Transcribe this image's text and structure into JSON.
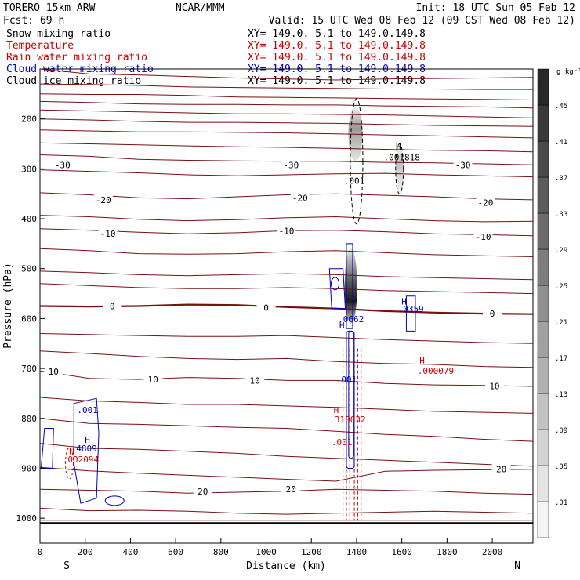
{
  "header": {
    "model": "TORERO  15km ARW",
    "org": "NCAR/MMM",
    "init": "Init: 18 UTC Sun 05 Feb 12",
    "fcst": "Fcst:    69 h",
    "valid": "Valid: 15 UTC Wed 08 Feb 12 (09 CST Wed 08 Feb 12)"
  },
  "fields": [
    {
      "label": "Snow mixing ratio",
      "color": "#000000",
      "xy": "XY= 149.0.  5.1 to 149.0.149.8"
    },
    {
      "label": "Temperature",
      "color": "#cc0000",
      "xy": "XY= 149.0.  5.1 to 149.0.149.8"
    },
    {
      "label": "Rain water mixing ratio",
      "color": "#cc0000",
      "xy": "XY= 149.0.  5.1 to 149.0.149.8"
    },
    {
      "label": "Cloud water mixing ratio",
      "color": "#0000bb",
      "xy": "XY= 149.0.  5.1 to 149.0.149.8"
    },
    {
      "label": "Cloud ice mixing ratio",
      "color": "#000000",
      "xy": "XY= 149.0.  5.1 to 149.0.149.8"
    }
  ],
  "chart_data": {
    "type": "contour-cross-section",
    "xlabel": "Distance (km)",
    "ylabel": "Pressure (hPa)",
    "xlim": [
      0,
      2180
    ],
    "ylim": [
      1050,
      100
    ],
    "x_ticks": [
      0,
      200,
      400,
      600,
      800,
      1000,
      1200,
      1400,
      1600,
      1800,
      2000
    ],
    "y_ticks": [
      200,
      300,
      400,
      500,
      600,
      700,
      800,
      900,
      1000
    ],
    "x_end_labels": {
      "left": "S",
      "right": "N"
    },
    "colorbar": {
      "unit": "g kg⁻¹",
      "levels": [
        ".01",
        ".05",
        ".09",
        ".13",
        ".17",
        ".21",
        ".25",
        ".29",
        ".33",
        ".37",
        ".41",
        ".45"
      ]
    },
    "temperature_labels": [
      {
        "text": "-30",
        "x": 100,
        "p": 292
      },
      {
        "text": "-30",
        "x": 1110,
        "p": 292
      },
      {
        "text": "-30",
        "x": 1870,
        "p": 292
      },
      {
        "text": "-20",
        "x": 280,
        "p": 362
      },
      {
        "text": "-20",
        "x": 1150,
        "p": 358
      },
      {
        "text": "-20",
        "x": 1970,
        "p": 368
      },
      {
        "text": "-10",
        "x": 300,
        "p": 430
      },
      {
        "text": "-10",
        "x": 1090,
        "p": 424
      },
      {
        "text": "-10",
        "x": 1960,
        "p": 436
      },
      {
        "text": "0",
        "x": 320,
        "p": 575
      },
      {
        "text": "0",
        "x": 1000,
        "p": 578
      },
      {
        "text": "0",
        "x": 2000,
        "p": 590
      },
      {
        "text": "10",
        "x": 60,
        "p": 706
      },
      {
        "text": "10",
        "x": 500,
        "p": 722
      },
      {
        "text": "10",
        "x": 950,
        "p": 724
      },
      {
        "text": "10",
        "x": 2010,
        "p": 735
      },
      {
        "text": "20",
        "x": 720,
        "p": 946
      },
      {
        "text": "20",
        "x": 1110,
        "p": 942
      },
      {
        "text": "20",
        "x": 2040,
        "p": 902
      }
    ],
    "extrema_labels": [
      {
        "text": "H",
        "color": "#000000",
        "x": 1585,
        "p": 262
      },
      {
        "text": ".001818",
        "color": "#000000",
        "x": 1600,
        "p": 283
      },
      {
        "text": ".001",
        "color": "#000000",
        "x": 1390,
        "p": 330
      },
      {
        "text": "H",
        "color": "#0000bb",
        "x": 1335,
        "p": 620
      },
      {
        "text": ".0662",
        "color": "#0000bb",
        "x": 1375,
        "p": 607
      },
      {
        "text": "H",
        "color": "#0000bb",
        "x": 1610,
        "p": 572
      },
      {
        "text": ".0359",
        "color": "#0000bb",
        "x": 1640,
        "p": 587
      },
      {
        "text": "H",
        "color": "#cc0000",
        "x": 1690,
        "p": 690
      },
      {
        "text": ".000079",
        "color": "#cc0000",
        "x": 1750,
        "p": 711
      },
      {
        "text": ".001",
        "color": "#0000bb",
        "x": 1355,
        "p": 728
      },
      {
        "text": "H",
        "color": "#cc0000",
        "x": 1310,
        "p": 789
      },
      {
        "text": ".310032",
        "color": "#cc0000",
        "x": 1360,
        "p": 808
      },
      {
        "text": ".001",
        "color": "#cc0000",
        "x": 1335,
        "p": 854
      },
      {
        "text": ".001",
        "color": "#0000bb",
        "x": 210,
        "p": 789
      },
      {
        "text": "H",
        "color": "#0000bb",
        "x": 210,
        "p": 849
      },
      {
        "text": ".4809",
        "color": "#0000bb",
        "x": 195,
        "p": 866
      },
      {
        "text": "H",
        "color": "#cc0000",
        "x": 140,
        "p": 872
      },
      {
        "text": ".002094",
        "color": "#cc0000",
        "x": 180,
        "p": 888
      }
    ]
  }
}
